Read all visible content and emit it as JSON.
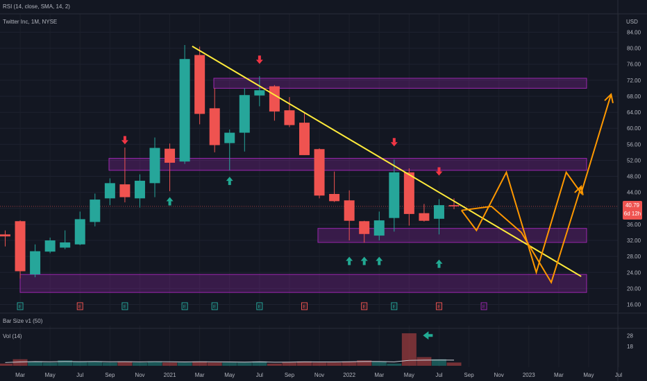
{
  "header": {
    "rsi_label": "RSI (14, close, SMA, 14, 2)",
    "symbol_label": "Twitter Inc, 1M, NYSE",
    "currency": "USD"
  },
  "price_tag": {
    "value": "40.79",
    "countdown": "6d 12h"
  },
  "panes": {
    "bar_size_label": "Bar Size v1 (50)",
    "vol_label": "Vol (14)"
  },
  "colors": {
    "up": "#26a69a",
    "down": "#ef5350",
    "trend": "#ffeb3b",
    "projection": "#ff9800",
    "zone": "#9c27b0"
  },
  "chart_data": {
    "type": "candlestick",
    "title": "Twitter Inc, 1M, NYSE",
    "y_unit": "USD",
    "y_range": [
      14,
      86
    ],
    "y_ticks": [
      16,
      20,
      24,
      28,
      32,
      36,
      40,
      44,
      48,
      52,
      56,
      60,
      64,
      68,
      72,
      76,
      80,
      84
    ],
    "x_tick_labels": [
      "Mar",
      "May",
      "Jul",
      "Sep",
      "Nov",
      "2021",
      "Mar",
      "May",
      "Jul",
      "Sep",
      "Nov",
      "2022",
      "Mar",
      "May",
      "Jul",
      "Sep",
      "Nov",
      "2023",
      "Mar",
      "May",
      "Jul"
    ],
    "candles": [
      {
        "o": 33.5,
        "h": 34.5,
        "c": 33,
        "l": 30.5
      },
      {
        "o": 36.8,
        "h": 37,
        "c": 24.3,
        "l": 22.5
      },
      {
        "o": 23.5,
        "h": 31,
        "c": 29.3,
        "l": 22.8
      },
      {
        "o": 29.2,
        "h": 32.7,
        "c": 32,
        "l": 28.8
      },
      {
        "o": 30.2,
        "h": 34.5,
        "c": 31.5,
        "l": 29.8
      },
      {
        "o": 31,
        "h": 39.2,
        "c": 37.3,
        "l": 30.8
      },
      {
        "o": 36.6,
        "h": 43.7,
        "c": 42.2,
        "l": 35.5
      },
      {
        "o": 42.5,
        "h": 47.5,
        "c": 46.3,
        "l": 40.8
      },
      {
        "o": 46,
        "h": 55.2,
        "c": 42.8,
        "l": 41.5
      },
      {
        "o": 42.5,
        "h": 48.5,
        "c": 46.9,
        "l": 40.2
      },
      {
        "o": 46.3,
        "h": 57.7,
        "c": 55.1,
        "l": 42.8
      },
      {
        "o": 54.9,
        "h": 56.2,
        "c": 51.4,
        "l": 44.3
      },
      {
        "o": 51.7,
        "h": 80.8,
        "c": 77.3,
        "l": 51.1
      },
      {
        "o": 78.3,
        "h": 80.4,
        "c": 63.6,
        "l": 61
      },
      {
        "o": 65,
        "h": 70,
        "c": 55.8,
        "l": 54
      },
      {
        "o": 56.3,
        "h": 59.7,
        "c": 58.9,
        "l": 49.5
      },
      {
        "o": 58.9,
        "h": 70,
        "c": 68.3,
        "l": 54.2
      },
      {
        "o": 68.2,
        "h": 73,
        "c": 69.5,
        "l": 65.5
      },
      {
        "o": 70.5,
        "h": 70.8,
        "c": 64.2,
        "l": 61.9
      },
      {
        "o": 64.5,
        "h": 67.8,
        "c": 60.8,
        "l": 60.3
      },
      {
        "o": 61.4,
        "h": 64.1,
        "c": 53.3,
        "l": 53.3
      },
      {
        "o": 54.8,
        "h": 55,
        "c": 43.2,
        "l": 42.5
      },
      {
        "o": 43.6,
        "h": 49.2,
        "c": 41.8,
        "l": 41.6
      },
      {
        "o": 42,
        "h": 44.5,
        "c": 36.9,
        "l": 32
      },
      {
        "o": 36.8,
        "h": 36.9,
        "c": 33.6,
        "l": 31.4
      },
      {
        "o": 33.2,
        "h": 39.2,
        "c": 37,
        "l": 32
      },
      {
        "o": 37.6,
        "h": 52.2,
        "c": 49,
        "l": 34.2
      },
      {
        "o": 49,
        "h": 50,
        "c": 38.6,
        "l": 35.7
      },
      {
        "o": 38.8,
        "h": 41.1,
        "c": 36.9,
        "l": 36.7
      },
      {
        "o": 37.4,
        "h": 42.3,
        "c": 40.8,
        "l": 33.5
      },
      {
        "o": 40.8,
        "h": 42.5,
        "c": 40.5,
        "l": 39.8
      }
    ],
    "resistance_zones": [
      [
        70,
        72.5
      ],
      [
        49.5,
        52.5
      ],
      [
        31.5,
        35
      ],
      [
        19,
        23.5
      ]
    ],
    "trend_line": {
      "from": {
        "bar": 12.5,
        "price": 80.5
      },
      "to": {
        "bar": 38.5,
        "price": 23
      }
    },
    "projection_paths": [
      [
        [
          30.5,
          39.5
        ],
        [
          31.5,
          34.5
        ],
        [
          33.5,
          49
        ],
        [
          35.5,
          24
        ],
        [
          37.5,
          49
        ],
        [
          38.5,
          43.8
        ],
        [
          40.5,
          68.5
        ]
      ],
      [
        [
          30.5,
          39.5
        ],
        [
          32.5,
          40.5
        ],
        [
          34.5,
          34
        ],
        [
          36.5,
          21.5
        ],
        [
          38.5,
          45.5
        ]
      ]
    ],
    "down_arrows": [
      {
        "bar": 8,
        "price": 57.2
      },
      {
        "bar": 17,
        "price": 77.3
      },
      {
        "bar": 26,
        "price": 56.7
      },
      {
        "bar": 29,
        "price": 49.4
      }
    ],
    "up_arrows": [
      {
        "bar": 15,
        "price": 46.7
      },
      {
        "bar": 11,
        "price": 41.6
      },
      {
        "bar": 23,
        "price": 26.7
      },
      {
        "bar": 24,
        "price": 26.7
      },
      {
        "bar": 25,
        "price": 26.7
      },
      {
        "bar": 29,
        "price": 26
      }
    ],
    "earnings_markers": [
      {
        "bar": 1,
        "letter": "E",
        "kind": "up"
      },
      {
        "bar": 5,
        "letter": "E",
        "kind": "down"
      },
      {
        "bar": 8,
        "letter": "E",
        "kind": "up"
      },
      {
        "bar": 12,
        "letter": "E",
        "kind": "up"
      },
      {
        "bar": 14,
        "letter": "E",
        "kind": "up"
      },
      {
        "bar": 17,
        "letter": "E",
        "kind": "up"
      },
      {
        "bar": 20,
        "letter": "E",
        "kind": "down"
      },
      {
        "bar": 24,
        "letter": "E",
        "kind": "down"
      },
      {
        "bar": 26,
        "letter": "E",
        "kind": "up"
      },
      {
        "bar": 29,
        "letter": "E",
        "kind": "down"
      },
      {
        "bar": 32,
        "letter": "E",
        "kind": "future"
      }
    ],
    "volume": {
      "y_range": [
        0,
        32
      ],
      "y_ticks": [
        18,
        28
      ],
      "bars": [
        2,
        6,
        4,
        3,
        5,
        4,
        4,
        3,
        4,
        3,
        4,
        3,
        3,
        4,
        3,
        3,
        3,
        4,
        2,
        3,
        4,
        3,
        3,
        4,
        5,
        4,
        2,
        30,
        8,
        6,
        3
      ],
      "ma": [
        3,
        3.5,
        3.8,
        3.7,
        3.9,
        3.8,
        3.9,
        3.7,
        3.8,
        3.6,
        3.8,
        3.7,
        3.5,
        3.7,
        3.6,
        3.5,
        3.4,
        3.6,
        3.3,
        3.4,
        3.6,
        3.5,
        3.5,
        3.7,
        3.9,
        3.9,
        3.6,
        5,
        5.2,
        5.3,
        5.2
      ]
    }
  }
}
